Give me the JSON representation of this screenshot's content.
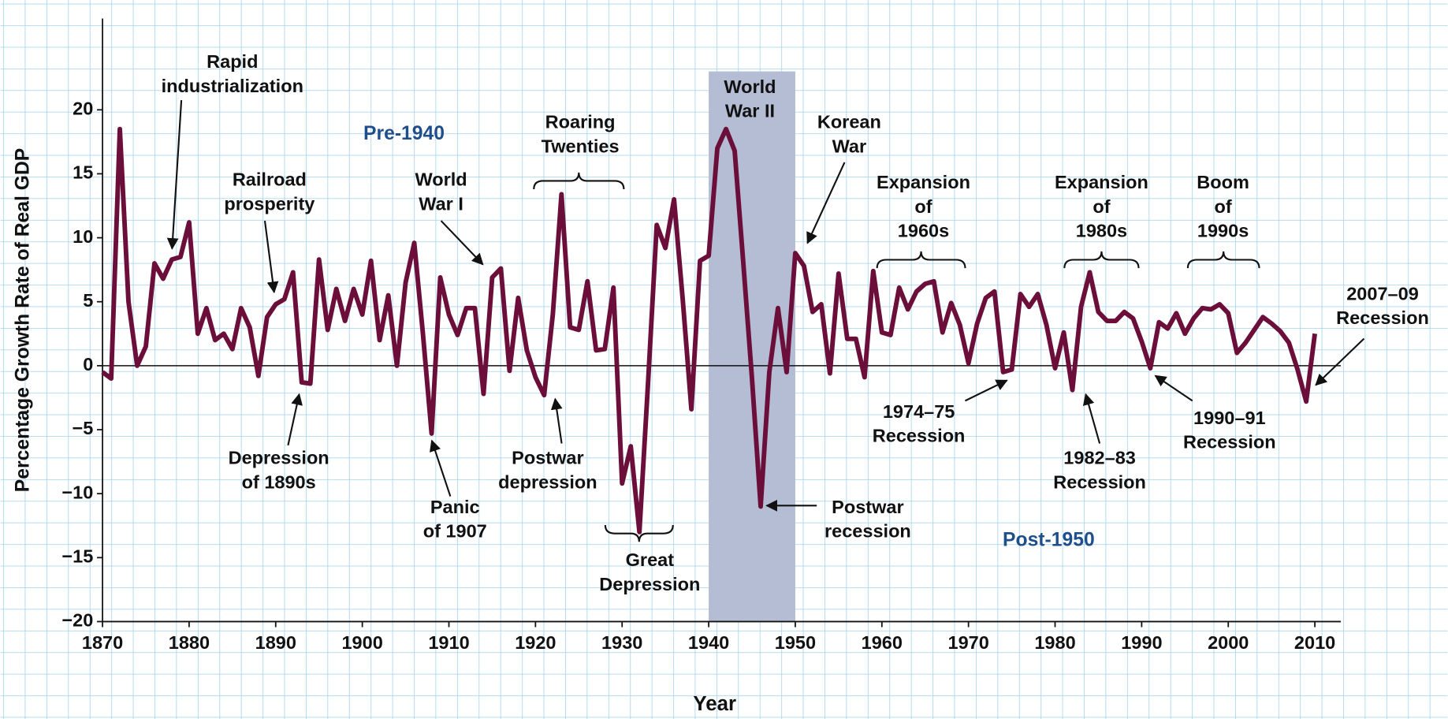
{
  "chart_data": {
    "type": "line",
    "y_label": "Percentage Growth Rate of Real GDP",
    "x_label": "Year",
    "color": "#6b0f3a",
    "shade": [
      1940,
      1950
    ],
    "shade_color": "#b4bdd4",
    "period_labels": [
      "Pre-1940",
      "Post-1950"
    ],
    "annotations": [
      [
        "Rapid",
        "industrialization"
      ],
      [
        "Railroad",
        "prosperity"
      ],
      [
        "World",
        "War I"
      ],
      [
        "Roaring",
        "Twenties"
      ],
      [
        "World",
        "War II"
      ],
      [
        "Korean",
        "War"
      ],
      [
        "Expansion",
        "of",
        "1960s"
      ],
      [
        "Expansion",
        "of",
        "1980s"
      ],
      [
        "Boom",
        "of",
        "1990s"
      ],
      [
        "2007–09",
        "Recession"
      ],
      [
        "Depression",
        "of 1890s"
      ],
      [
        "Panic",
        "of 1907"
      ],
      [
        "Postwar",
        "depression"
      ],
      [
        "Great",
        "Depression"
      ],
      [
        "Postwar",
        "recession"
      ],
      [
        "1974–75",
        "Recession"
      ],
      [
        "1982–83",
        "Recession"
      ],
      [
        "1990–91",
        "Recession"
      ]
    ],
    "x": [
      1870,
      1871,
      1872,
      1873,
      1874,
      1875,
      1876,
      1877,
      1878,
      1879,
      1880,
      1881,
      1882,
      1883,
      1884,
      1885,
      1886,
      1887,
      1888,
      1889,
      1890,
      1891,
      1892,
      1893,
      1894,
      1895,
      1896,
      1897,
      1898,
      1899,
      1900,
      1901,
      1902,
      1903,
      1904,
      1905,
      1906,
      1907,
      1908,
      1909,
      1910,
      1911,
      1912,
      1913,
      1914,
      1915,
      1916,
      1917,
      1918,
      1919,
      1920,
      1921,
      1922,
      1923,
      1924,
      1925,
      1926,
      1927,
      1928,
      1929,
      1930,
      1931,
      1932,
      1933,
      1934,
      1935,
      1936,
      1937,
      1938,
      1939,
      1940,
      1941,
      1942,
      1943,
      1944,
      1945,
      1946,
      1947,
      1948,
      1949,
      1950,
      1951,
      1952,
      1953,
      1954,
      1955,
      1956,
      1957,
      1958,
      1959,
      1960,
      1961,
      1962,
      1963,
      1964,
      1965,
      1966,
      1967,
      1968,
      1969,
      1970,
      1971,
      1972,
      1973,
      1974,
      1975,
      1976,
      1977,
      1978,
      1979,
      1980,
      1981,
      1982,
      1983,
      1984,
      1985,
      1986,
      1987,
      1988,
      1989,
      1990,
      1991,
      1992,
      1993,
      1994,
      1995,
      1996,
      1997,
      1998,
      1999,
      2000,
      2001,
      2002,
      2003,
      2004,
      2005,
      2006,
      2007,
      2008,
      2009,
      2010
    ],
    "values": [
      -0.5,
      -1,
      18.5,
      5,
      0,
      1.5,
      8,
      6.8,
      8.3,
      8.5,
      11.2,
      2.5,
      4.5,
      2,
      2.5,
      1.3,
      4.5,
      3,
      -0.8,
      3.8,
      4.8,
      5.2,
      7.3,
      -1.3,
      -1.4,
      8.3,
      2.8,
      6,
      3.5,
      6,
      4,
      8.2,
      2,
      5.5,
      0,
      6.5,
      9.6,
      2.5,
      -5.3,
      6.9,
      4,
      2.4,
      4.5,
      4.5,
      -2.2,
      6.9,
      7.6,
      -0.4,
      5.3,
      1.2,
      -0.9,
      -2.3,
      4,
      13.4,
      3,
      2.8,
      6.6,
      1.2,
      1.3,
      6.1,
      -9.2,
      -6.3,
      -13,
      -1.3,
      11,
      9.2,
      13,
      5.2,
      -3.4,
      8.2,
      8.6,
      17,
      18.5,
      16.8,
      8,
      -1,
      -11,
      -0.5,
      4.5,
      -0.5,
      8.8,
      7.8,
      4.2,
      4.8,
      -0.6,
      7.2,
      2.1,
      2.1,
      -0.9,
      7.4,
      2.6,
      2.4,
      6.1,
      4.4,
      5.8,
      6.4,
      6.6,
      2.6,
      4.9,
      3.2,
      0.2,
      3.3,
      5.3,
      5.8,
      -0.5,
      -0.3,
      5.6,
      4.6,
      5.6,
      3.2,
      -0.2,
      2.6,
      -1.9,
      4.6,
      7.3,
      4.2,
      3.5,
      3.5,
      4.2,
      3.7,
      1.9,
      -0.2,
      3.4,
      2.9,
      4.1,
      2.5,
      3.7,
      4.5,
      4.4,
      4.8,
      4.1,
      1,
      1.8,
      2.8,
      3.8,
      3.3,
      2.7,
      1.8,
      -0.3,
      -2.8,
      2.5
    ],
    "xlim": [
      1870,
      2013
    ],
    "ylim": [
      -20,
      23
    ],
    "xticks": [
      1870,
      1880,
      1890,
      1900,
      1910,
      1920,
      1930,
      1940,
      1950,
      1960,
      1970,
      1980,
      1990,
      2000,
      2010
    ],
    "yticks": [
      {
        "value": -20,
        "label": "−20"
      },
      {
        "value": -15,
        "label": "−15"
      },
      {
        "value": -10,
        "label": "−10"
      },
      {
        "value": -5,
        "label": "−5"
      },
      0,
      5,
      10,
      15,
      20
    ]
  }
}
